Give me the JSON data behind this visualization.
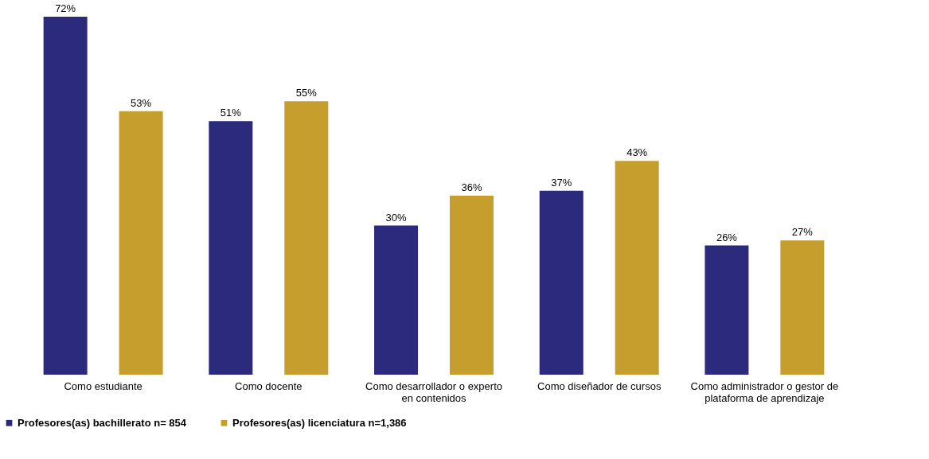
{
  "chart_data": {
    "type": "bar",
    "categories": [
      "Como estudiante",
      "Como docente",
      "Como desarrollador o experto en contenidos",
      "Como diseñador de cursos",
      "Como administrador o gestor de plataforma de aprendizaje"
    ],
    "series": [
      {
        "name": "Profesores(as) bachillerato n= 854",
        "color": "#2c2a7c",
        "values": [
          72,
          51,
          30,
          37,
          26
        ],
        "value_labels": [
          "72%",
          "51%",
          "30%",
          "37%",
          "26%"
        ]
      },
      {
        "name": "Profesores(as) licenciatura n=1,386",
        "color": "#c69e2e",
        "values": [
          53,
          55,
          36,
          43,
          27
        ],
        "value_labels": [
          "53%",
          "55%",
          "36%",
          "43%",
          "27%"
        ]
      }
    ],
    "legend": "bottom",
    "grid": false
  }
}
